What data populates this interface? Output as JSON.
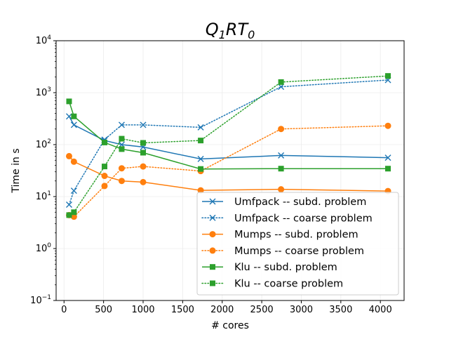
{
  "chart_data": {
    "type": "line",
    "title": "Q",
    "title_sub1": "1",
    "title_mid": "RT",
    "title_sub2": "0",
    "xlabel": "# cores",
    "ylabel": "Time in s",
    "yscale": "log",
    "xlim": [
      -100,
      4300
    ],
    "ylim": [
      0.1,
      10000
    ],
    "xticks": [
      0,
      500,
      1000,
      1500,
      2000,
      2500,
      3000,
      3500,
      4000
    ],
    "xtick_labels": [
      "0",
      "500",
      "1000",
      "1500",
      "2000",
      "2500",
      "3000",
      "3500",
      "4000"
    ],
    "yticks": [
      0.1,
      1,
      10,
      100,
      1000,
      10000
    ],
    "ytick_base": "10",
    "ytick_exponents": [
      "−1",
      "0",
      "1",
      "2",
      "3",
      "4"
    ],
    "grid": true,
    "legend_position": "lower-right",
    "series": [
      {
        "name": "Umfpack -- subd. problem",
        "color": "#1f77b4",
        "linestyle": "solid",
        "marker": "x",
        "x": [
          64,
          125,
          512,
          729,
          1000,
          1728,
          2744,
          4096
        ],
        "y": [
          350,
          240,
          120,
          100,
          90,
          53,
          62,
          56
        ]
      },
      {
        "name": "Umfpack -- coarse problem",
        "color": "#1f77b4",
        "linestyle": "dotted",
        "marker": "x",
        "x": [
          64,
          125,
          512,
          729,
          1000,
          1728,
          2744,
          4096
        ],
        "y": [
          7,
          13,
          125,
          240,
          240,
          215,
          1300,
          1750
        ]
      },
      {
        "name": "Mumps -- subd. problem",
        "color": "#ff7f0e",
        "linestyle": "solid",
        "marker": "o",
        "x": [
          64,
          125,
          512,
          729,
          1000,
          1728,
          2744,
          4096
        ],
        "y": [
          60,
          47,
          25,
          20,
          19,
          13.2,
          13.8,
          12.8
        ]
      },
      {
        "name": "Mumps -- coarse problem",
        "color": "#ff7f0e",
        "linestyle": "dotted",
        "marker": "o",
        "x": [
          64,
          125,
          512,
          729,
          1000,
          1728,
          2744,
          4096
        ],
        "y": [
          4.4,
          4.1,
          16,
          35,
          38,
          31,
          200,
          230
        ]
      },
      {
        "name": "Klu -- subd. problem",
        "color": "#2ca02c",
        "linestyle": "solid",
        "marker": "s",
        "x": [
          64,
          125,
          512,
          729,
          1000,
          1728,
          2744,
          4096
        ],
        "y": [
          680,
          350,
          110,
          82,
          70,
          34,
          34.5,
          34.5
        ]
      },
      {
        "name": "Klu -- coarse problem",
        "color": "#2ca02c",
        "linestyle": "dotted",
        "marker": "s",
        "x": [
          64,
          125,
          512,
          729,
          1000,
          1728,
          2744,
          4096
        ],
        "y": [
          4.4,
          5,
          38,
          130,
          108,
          120,
          1600,
          2100
        ]
      }
    ]
  }
}
